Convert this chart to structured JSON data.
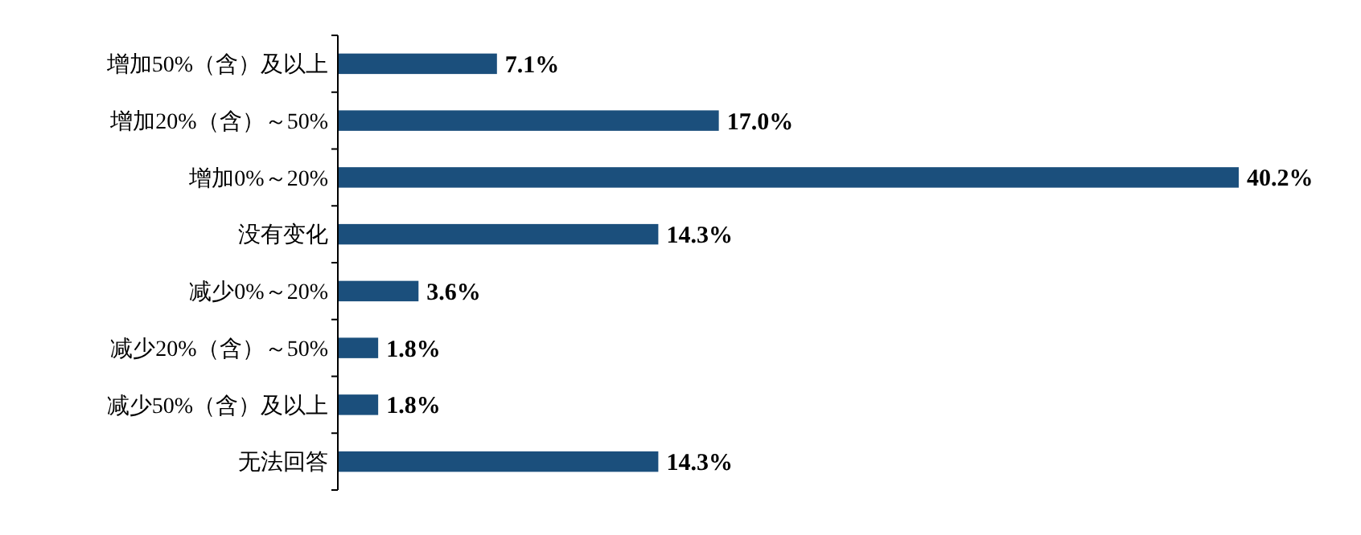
{
  "chart_data": {
    "type": "bar",
    "orientation": "horizontal",
    "categories": [
      "增加50%（含）及以上",
      "增加20%（含）～50%",
      "增加0%～20%",
      "没有变化",
      "减少0%～20%",
      "减少20%（含）～50%",
      "减少50%（含）及以上",
      "无法回答"
    ],
    "values": [
      7.1,
      17.0,
      40.2,
      14.3,
      3.6,
      1.8,
      1.8,
      14.3
    ],
    "value_labels": [
      "7.1%",
      "17.0%",
      "40.2%",
      "14.3%",
      "3.6%",
      "1.8%",
      "1.8%",
      "14.3%"
    ],
    "color": "#1b4f7c",
    "tick_labels": "y"
  }
}
